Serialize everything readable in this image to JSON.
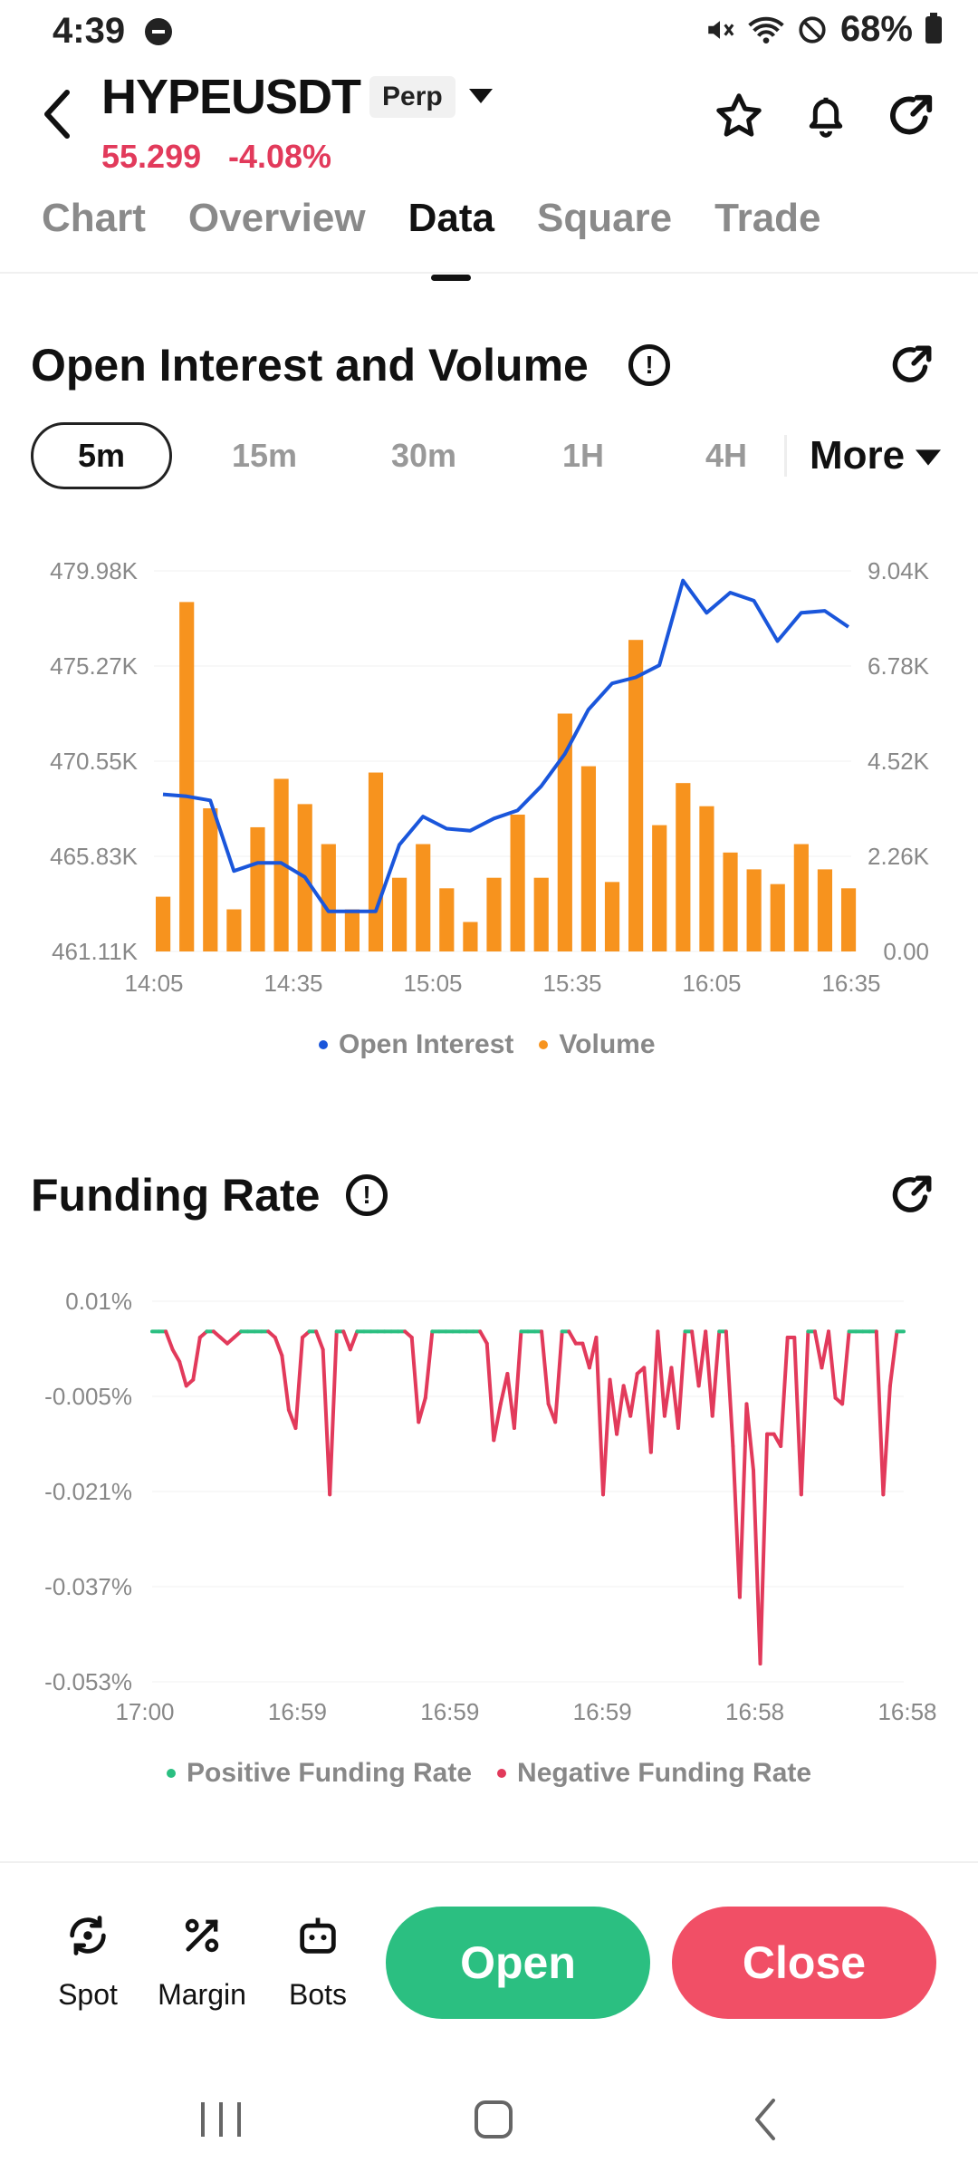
{
  "status": {
    "time": "4:39",
    "battery": "68%"
  },
  "header": {
    "pair": "HYPEUSDT",
    "tag": "Perp",
    "price": "55.299",
    "change": "-4.08%"
  },
  "tabs": [
    "Chart",
    "Overview",
    "Data",
    "Square",
    "Trade"
  ],
  "active_tab": "Data",
  "oi_section": {
    "title": "Open Interest and Volume",
    "intervals": [
      "5m",
      "15m",
      "30m",
      "1H",
      "4H"
    ],
    "active_interval": "5m",
    "more_label": "More"
  },
  "funding_section": {
    "title": "Funding Rate"
  },
  "colors": {
    "positive": "#2bbf81",
    "negative": "#e23a5b",
    "oi_line": "#1a56db",
    "volume_bar": "#f7931e"
  },
  "chart_data": [
    {
      "type": "bar",
      "title": "Open Interest and Volume",
      "x_ticks": [
        "14:05",
        "14:35",
        "15:05",
        "15:35",
        "16:05",
        "16:35"
      ],
      "y_left_ticks": [
        "479.98K",
        "475.27K",
        "470.55K",
        "465.83K",
        "461.11K"
      ],
      "y_right_ticks": [
        "9.04K",
        "6.78K",
        "4.52K",
        "2.26K",
        "0.00"
      ],
      "y_left_range": [
        461.11,
        479.98
      ],
      "y_right_range": [
        0,
        9.04
      ],
      "series": [
        {
          "name": "Open Interest",
          "type": "line",
          "values": [
            468.9,
            468.8,
            468.6,
            465.1,
            465.5,
            465.5,
            464.8,
            463.1,
            463.1,
            463.1,
            466.4,
            467.8,
            467.2,
            467.1,
            467.7,
            468.1,
            469.3,
            470.9,
            473.1,
            474.4,
            474.7,
            475.3,
            479.5,
            477.9,
            478.9,
            478.5,
            476.5,
            477.9,
            478.0,
            477.2
          ]
        },
        {
          "name": "Volume",
          "type": "bar",
          "values": [
            1.3,
            8.3,
            3.4,
            1.0,
            2.95,
            4.1,
            3.5,
            2.55,
            1.0,
            4.25,
            1.75,
            2.55,
            1.5,
            0.7,
            1.75,
            3.25,
            1.75,
            5.65,
            4.4,
            1.65,
            7.4,
            3.0,
            4.0,
            3.45,
            2.35,
            1.95,
            1.6,
            2.55,
            1.95,
            1.5
          ]
        }
      ],
      "legend": [
        "Open Interest",
        "Volume"
      ]
    },
    {
      "type": "line",
      "title": "Funding Rate",
      "x_ticks": [
        "17:00",
        "16:59",
        "16:59",
        "16:59",
        "16:58",
        "16:58"
      ],
      "y_ticks": [
        "0.01%",
        "-0.005%",
        "-0.021%",
        "-0.037%",
        "-0.053%"
      ],
      "y_range": [
        -0.053,
        0.01
      ],
      "values": [
        0.005,
        0.005,
        0.005,
        0.002,
        0.0,
        -0.004,
        -0.003,
        0.004,
        0.005,
        0.005,
        0.004,
        0.003,
        0.004,
        0.005,
        0.005,
        0.005,
        0.005,
        0.005,
        0.004,
        0.001,
        -0.008,
        -0.011,
        0.004,
        0.005,
        0.005,
        0.002,
        -0.022,
        0.005,
        0.005,
        0.002,
        0.005,
        0.005,
        0.005,
        0.005,
        0.005,
        0.005,
        0.005,
        0.005,
        0.004,
        -0.01,
        -0.006,
        0.005,
        0.005,
        0.005,
        0.005,
        0.005,
        0.005,
        0.005,
        0.005,
        0.003,
        -0.013,
        -0.007,
        -0.002,
        -0.011,
        0.005,
        0.005,
        0.005,
        0.005,
        -0.007,
        -0.01,
        0.005,
        0.005,
        0.003,
        0.003,
        -0.001,
        0.004,
        -0.022,
        -0.003,
        -0.012,
        -0.004,
        -0.009,
        -0.002,
        -0.001,
        -0.015,
        0.005,
        -0.009,
        -0.001,
        -0.011,
        0.005,
        0.005,
        -0.004,
        0.005,
        -0.009,
        0.005,
        0.005,
        -0.014,
        -0.039,
        -0.007,
        -0.018,
        -0.05,
        -0.012,
        -0.012,
        -0.014,
        0.004,
        0.004,
        -0.022,
        0.005,
        0.005,
        -0.001,
        0.005,
        -0.006,
        -0.007,
        0.005,
        0.005,
        0.005,
        0.005,
        0.005,
        -0.022,
        -0.004,
        0.005,
        0.005
      ],
      "legend": [
        "Positive Funding Rate",
        "Negative Funding Rate"
      ]
    }
  ],
  "bottom": {
    "spot": "Spot",
    "margin": "Margin",
    "bots": "Bots",
    "open": "Open",
    "close": "Close"
  }
}
